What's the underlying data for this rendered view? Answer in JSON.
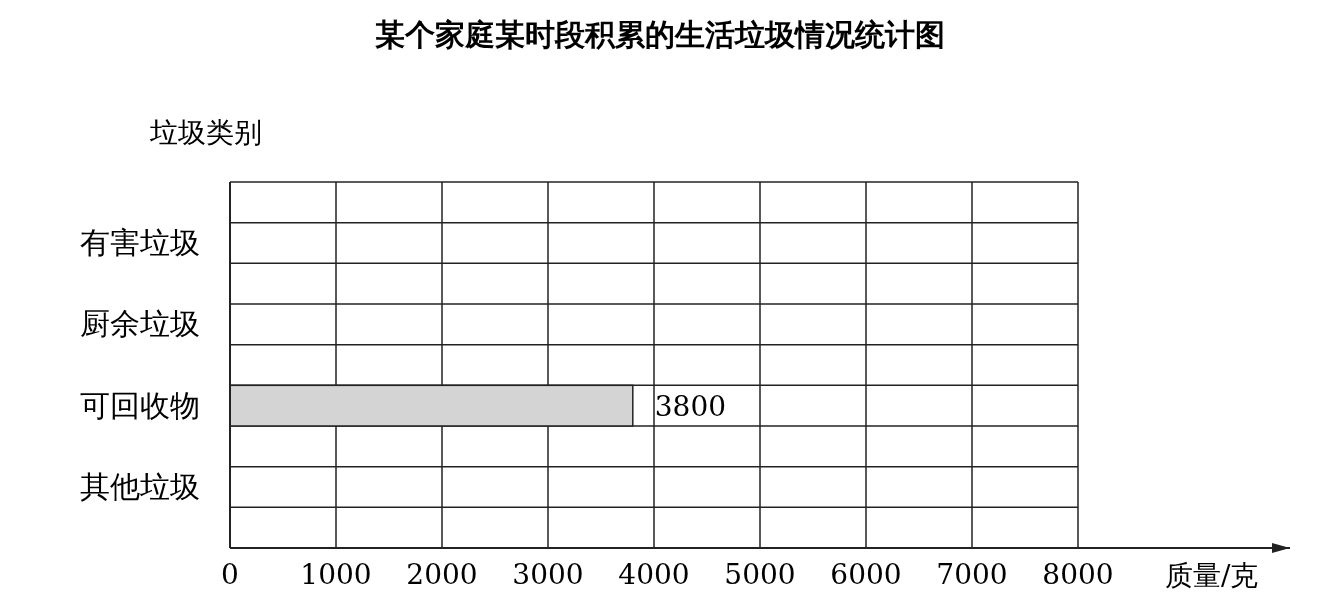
{
  "chart_data": {
    "type": "bar",
    "orientation": "horizontal",
    "title": "某个家庭某时段积累的生活垃圾情况统计图",
    "ylabel": "垃圾类别",
    "xlabel": "质量/克",
    "categories": [
      "有害垃圾",
      "厨余垃圾",
      "可回收物",
      "其他垃圾"
    ],
    "values": [
      null,
      null,
      3800,
      null
    ],
    "color": "#d4d4d4",
    "xlim": [
      0,
      10000
    ],
    "xticks": [
      0,
      1000,
      2000,
      3000,
      4000,
      5000,
      6000,
      7000,
      8000
    ],
    "grid": true,
    "data_labels": true
  }
}
